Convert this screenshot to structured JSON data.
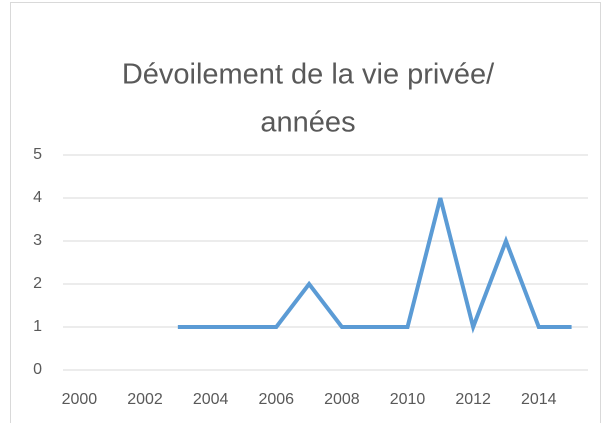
{
  "chart_data": {
    "type": "line",
    "title": [
      "Dévoilement de la vie privée/",
      "années"
    ],
    "x": [
      2003,
      2004,
      2005,
      2006,
      2007,
      2008,
      2009,
      2010,
      2011,
      2012,
      2013,
      2014,
      2015
    ],
    "series": [
      {
        "name": null,
        "color": "#5b9bd5",
        "values": [
          1,
          1,
          1,
          1,
          2,
          1,
          1,
          1,
          4,
          1,
          3,
          1,
          1
        ]
      }
    ],
    "xlim": [
      1999.5,
      2015.5
    ],
    "xticks": [
      2000,
      2002,
      2004,
      2006,
      2008,
      2010,
      2012,
      2014
    ],
    "ylim": [
      0,
      5
    ],
    "yticks": [
      0,
      1,
      2,
      3,
      4,
      5
    ],
    "grid": true
  }
}
